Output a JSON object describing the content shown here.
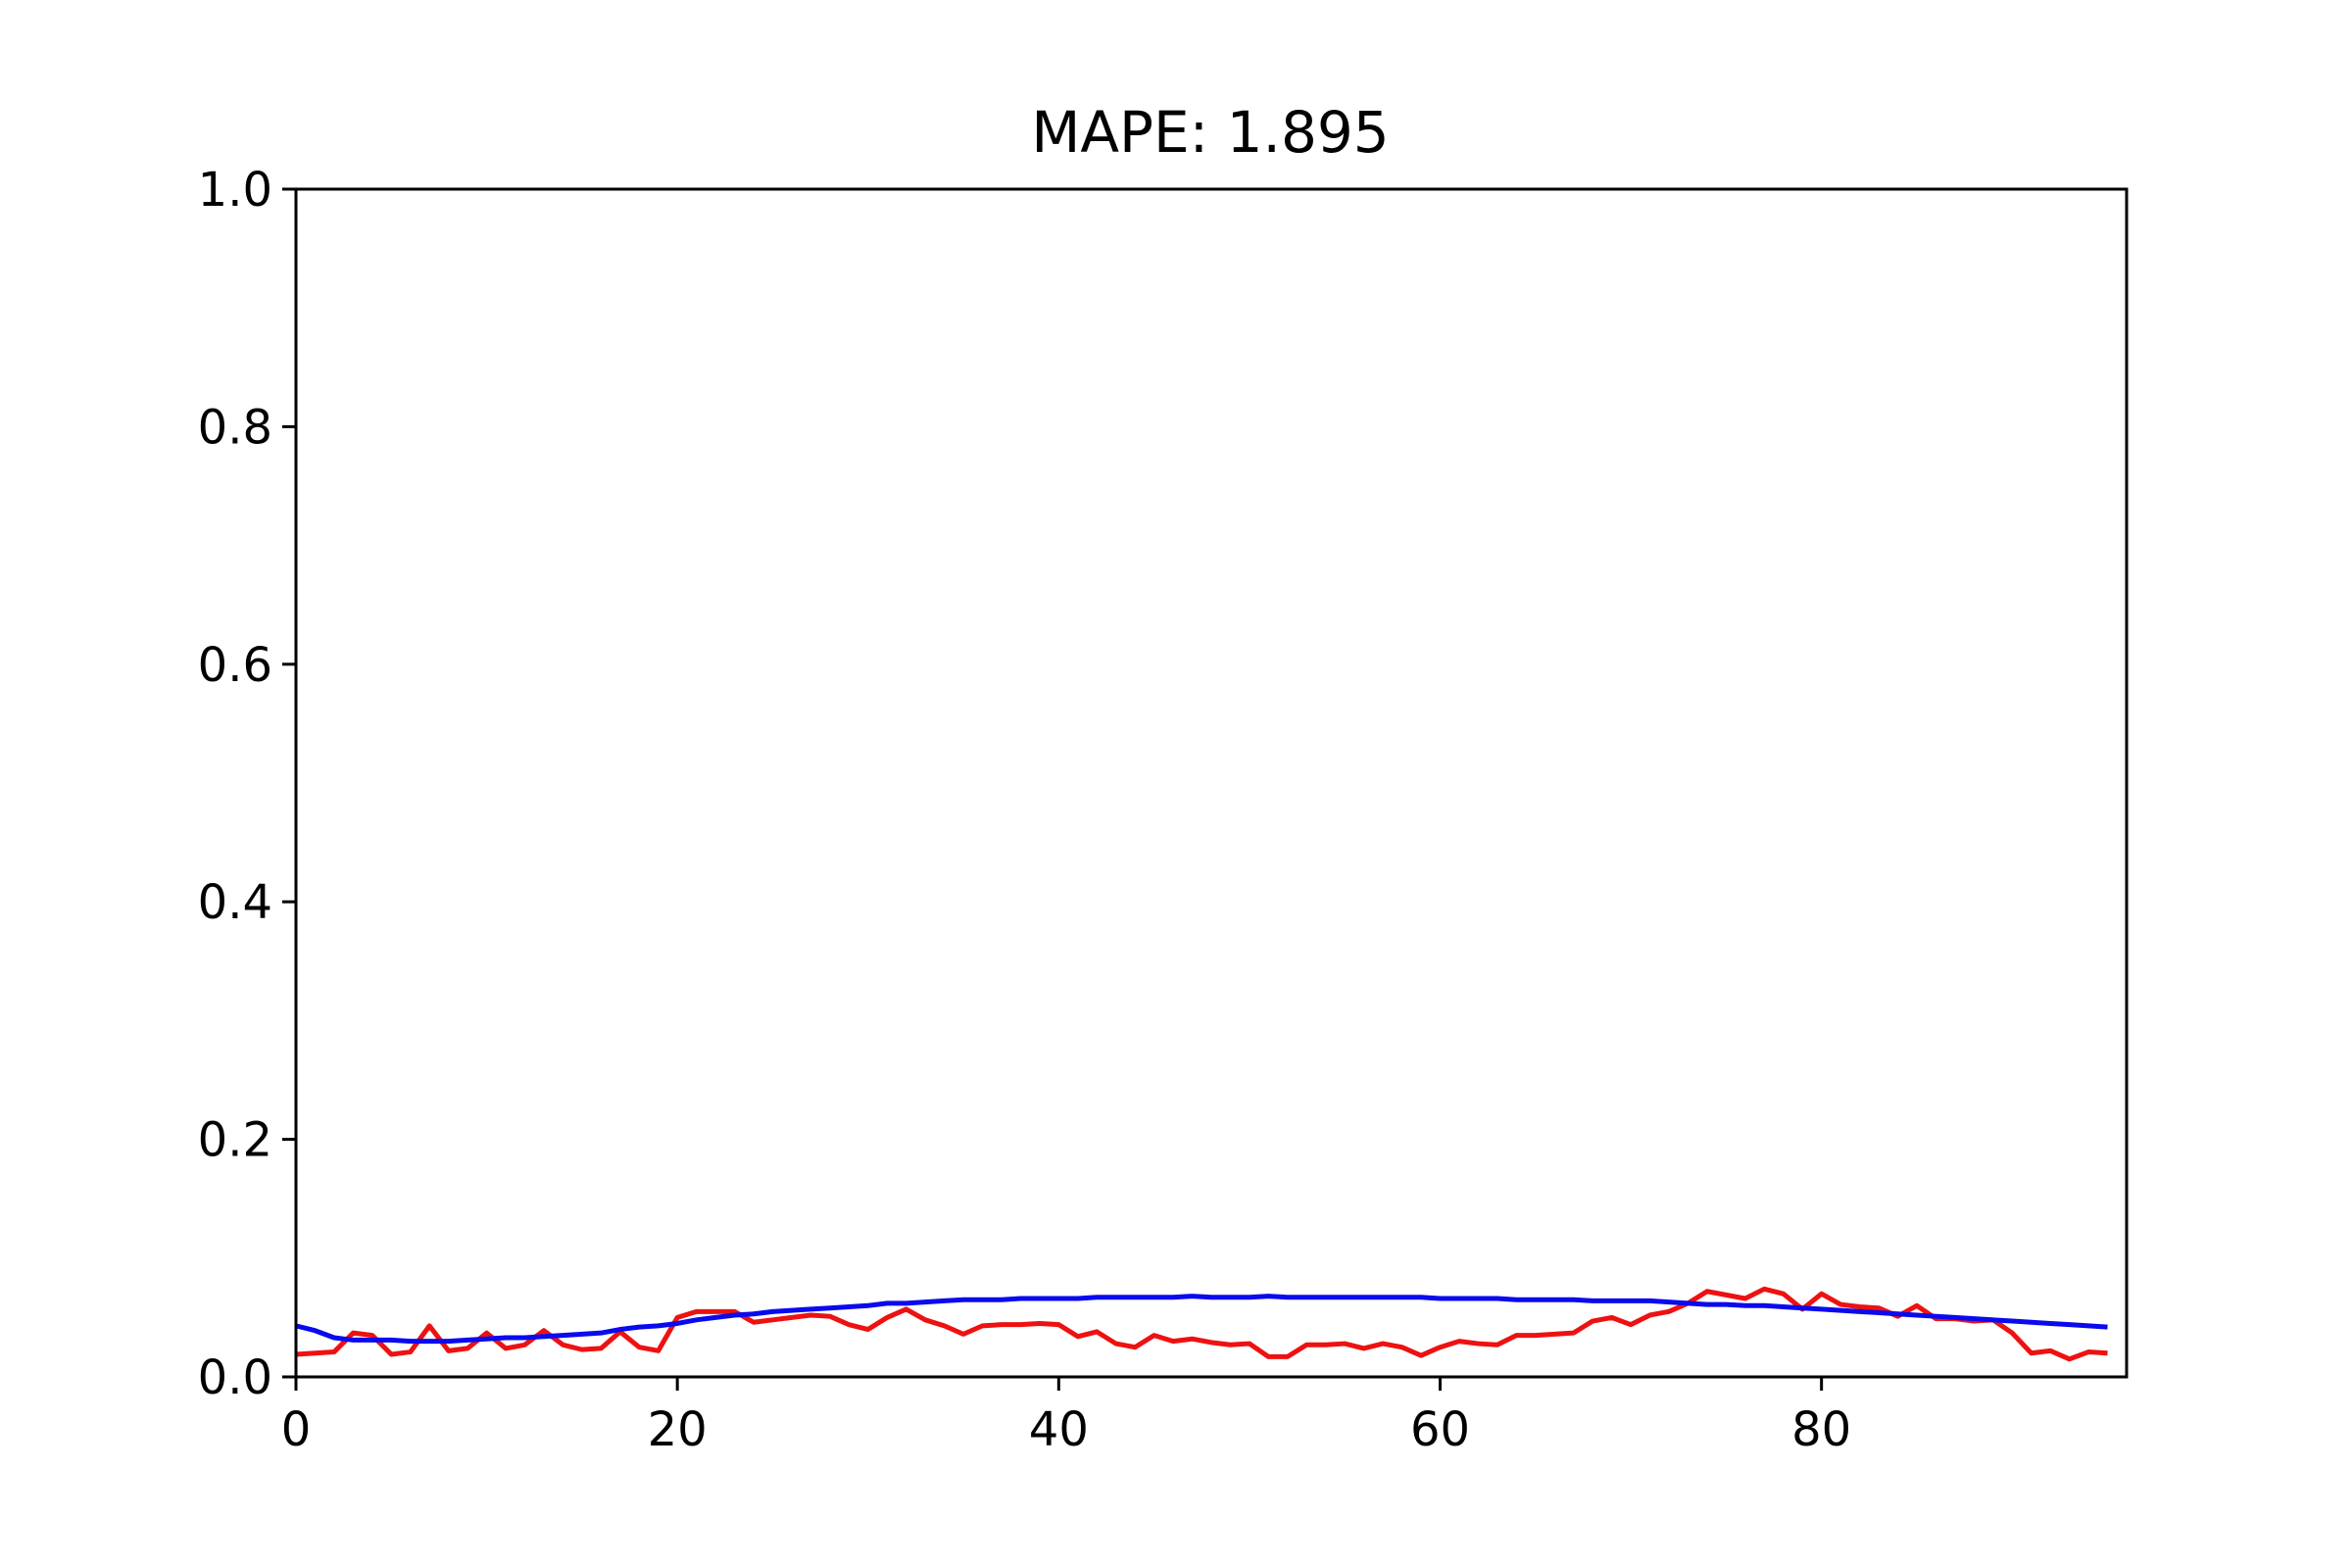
{
  "chart_data": {
    "type": "line",
    "title": "MAPE: 1.895",
    "xlabel": "",
    "ylabel": "",
    "xlim": [
      0,
      96
    ],
    "ylim": [
      0,
      1.0
    ],
    "x_ticks": [
      0,
      20,
      40,
      60,
      80
    ],
    "x_tick_labels": [
      "0",
      "20",
      "40",
      "60",
      "80"
    ],
    "y_ticks": [
      0,
      0.2,
      0.4,
      0.6,
      0.8,
      1.0
    ],
    "y_tick_labels": [
      "0.0",
      "0.2",
      "0.4",
      "0.6",
      "0.8",
      "1.0"
    ],
    "grid": false,
    "legend": "none",
    "x": [
      0,
      1,
      2,
      3,
      4,
      5,
      6,
      7,
      8,
      9,
      10,
      11,
      12,
      13,
      14,
      15,
      16,
      17,
      18,
      19,
      20,
      21,
      22,
      23,
      24,
      25,
      26,
      27,
      28,
      29,
      30,
      31,
      32,
      33,
      34,
      35,
      36,
      37,
      38,
      39,
      40,
      41,
      42,
      43,
      44,
      45,
      46,
      47,
      48,
      49,
      50,
      51,
      52,
      53,
      54,
      55,
      56,
      57,
      58,
      59,
      60,
      61,
      62,
      63,
      64,
      65,
      66,
      67,
      68,
      69,
      70,
      71,
      72,
      73,
      74,
      75,
      76,
      77,
      78,
      79,
      80,
      81,
      82,
      83,
      84,
      85,
      86,
      87,
      88,
      89,
      90,
      91,
      92,
      93,
      94,
      95
    ],
    "series": [
      {
        "color": "#ee1111",
        "values": [
          0.019,
          0.02,
          0.021,
          0.037,
          0.035,
          0.019,
          0.021,
          0.043,
          0.022,
          0.024,
          0.037,
          0.024,
          0.027,
          0.039,
          0.027,
          0.023,
          0.024,
          0.038,
          0.025,
          0.022,
          0.05,
          0.055,
          0.055,
          0.055,
          0.046,
          0.048,
          0.05,
          0.052,
          0.051,
          0.044,
          0.04,
          0.05,
          0.057,
          0.048,
          0.043,
          0.036,
          0.043,
          0.044,
          0.044,
          0.045,
          0.044,
          0.034,
          0.038,
          0.028,
          0.025,
          0.035,
          0.03,
          0.032,
          0.029,
          0.027,
          0.028,
          0.017,
          0.017,
          0.027,
          0.027,
          0.028,
          0.024,
          0.028,
          0.025,
          0.018,
          0.025,
          0.03,
          0.028,
          0.027,
          0.035,
          0.035,
          0.036,
          0.037,
          0.047,
          0.05,
          0.044,
          0.052,
          0.055,
          0.062,
          0.072,
          0.069,
          0.066,
          0.074,
          0.07,
          0.057,
          0.07,
          0.061,
          0.059,
          0.058,
          0.051,
          0.06,
          0.049,
          0.049,
          0.047,
          0.048,
          0.037,
          0.02,
          0.022,
          0.015,
          0.021,
          0.02
        ]
      },
      {
        "color": "#0a0aee",
        "values": [
          0.043,
          0.039,
          0.033,
          0.031,
          0.031,
          0.031,
          0.03,
          0.03,
          0.03,
          0.031,
          0.032,
          0.033,
          0.033,
          0.034,
          0.035,
          0.036,
          0.037,
          0.04,
          0.042,
          0.043,
          0.045,
          0.048,
          0.05,
          0.052,
          0.053,
          0.055,
          0.056,
          0.057,
          0.058,
          0.059,
          0.06,
          0.062,
          0.062,
          0.063,
          0.064,
          0.065,
          0.065,
          0.065,
          0.066,
          0.066,
          0.066,
          0.066,
          0.067,
          0.067,
          0.067,
          0.067,
          0.067,
          0.068,
          0.067,
          0.067,
          0.067,
          0.068,
          0.067,
          0.067,
          0.067,
          0.067,
          0.067,
          0.067,
          0.067,
          0.067,
          0.066,
          0.066,
          0.066,
          0.066,
          0.065,
          0.065,
          0.065,
          0.065,
          0.064,
          0.064,
          0.064,
          0.064,
          0.063,
          0.062,
          0.061,
          0.061,
          0.06,
          0.06,
          0.059,
          0.058,
          0.057,
          0.056,
          0.055,
          0.054,
          0.053,
          0.052,
          0.051,
          0.05,
          0.049,
          0.048,
          0.047,
          0.046,
          0.045,
          0.044,
          0.043,
          0.042
        ]
      }
    ]
  }
}
